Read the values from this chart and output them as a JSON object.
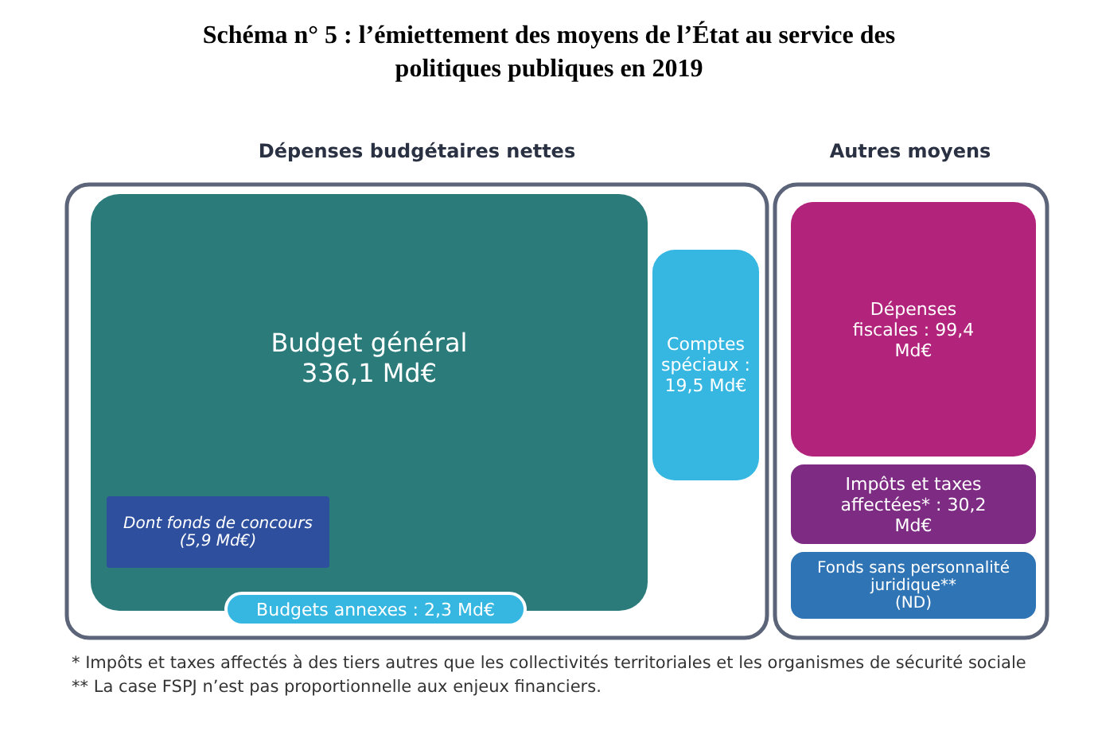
{
  "chart_data": {
    "type": "other",
    "title": "Schéma n° 5 : l’émiettement des moyens de l’État au service des politiques publiques en 2019",
    "categories": [
      "Budget général",
      "Dont fonds de concours",
      "Comptes spéciaux",
      "Budgets annexes",
      "Dépenses fiscales",
      "Impôts et taxes affectées*",
      "Fonds sans personnalité juridique**"
    ],
    "values": [
      336.1,
      5.9,
      19.5,
      2.3,
      99.4,
      30.2,
      null
    ],
    "value_labels": [
      "336,1 Md€",
      "(5,9 Md€)",
      ": 19,5 Md€",
      ": 2,3 Md€",
      ": 99,4 Md€",
      ": 30,2 Md€",
      "(ND)"
    ],
    "colors": [
      "#2b7b7b",
      "#2e4f9e",
      "#36b7e2",
      "#36b7e2",
      "#b2237b",
      "#7e2b84",
      "#2f74b5"
    ],
    "annotations": [
      "Dépenses budgétaires nettes",
      "Autres moyens",
      "* Impôts et taxes affectés à des tiers autres que les collectivités territoriales et les organismes de sécurité sociale",
      "** La case FSPJ n’est pas proportionnelle aux enjeux financiers."
    ]
  }
}
